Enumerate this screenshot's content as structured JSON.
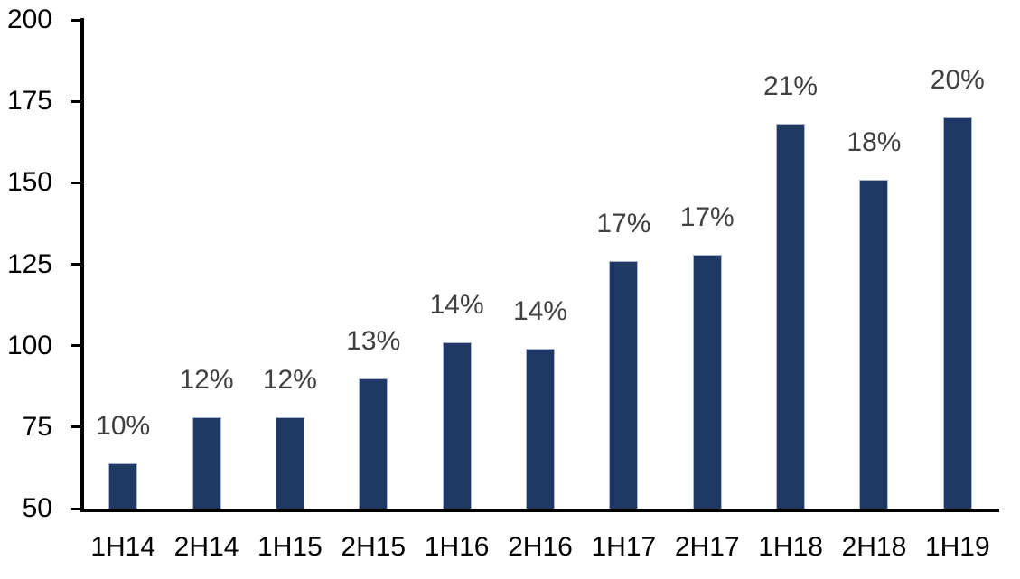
{
  "chart_data": {
    "type": "bar",
    "title": "",
    "xlabel": "",
    "ylabel": "",
    "categories": [
      "1H14",
      "2H14",
      "1H15",
      "2H15",
      "1H16",
      "2H16",
      "1H17",
      "2H17",
      "1H18",
      "2H18",
      "1H19"
    ],
    "values": [
      64,
      78,
      78,
      90,
      101,
      99,
      126,
      128,
      168,
      151,
      170
    ],
    "bar_labels": [
      "10%",
      "12%",
      "12%",
      "13%",
      "14%",
      "14%",
      "17%",
      "17%",
      "21%",
      "18%",
      "20%"
    ],
    "y_ticks": [
      50,
      75,
      100,
      125,
      150,
      175,
      200
    ],
    "ylim": [
      50,
      200
    ],
    "grid": false,
    "legend": false,
    "colors": {
      "bar_fill": "#1F3864",
      "bar_border": "#A9B6CE",
      "value_label": "#404040",
      "axis": "#000000",
      "tick_label": "#000000",
      "background": "#FFFFFF"
    }
  }
}
